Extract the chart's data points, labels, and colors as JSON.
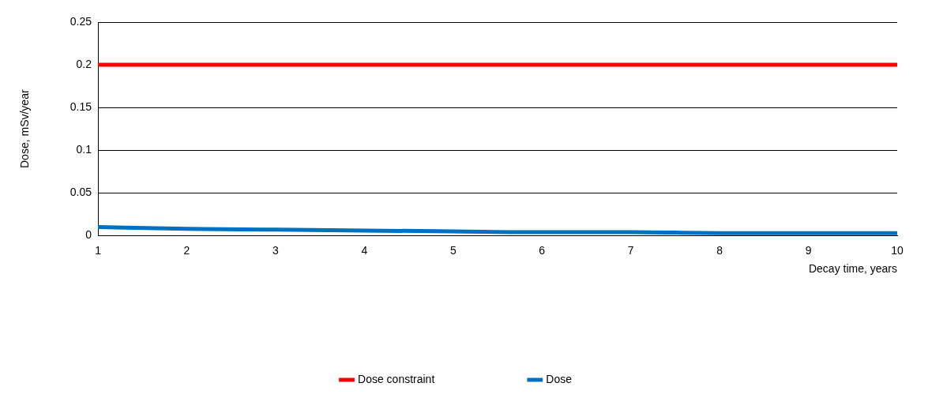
{
  "chart_data": {
    "type": "line",
    "xlabel": "Decay time, years",
    "ylabel": "Dose, mSv/year",
    "x": [
      1,
      2,
      3,
      4,
      5,
      6,
      7,
      8,
      9,
      10
    ],
    "series": [
      {
        "name": "Dose constraint",
        "color": "#ff0000",
        "values": [
          0.2,
          0.2,
          0.2,
          0.2,
          0.2,
          0.2,
          0.2,
          0.2,
          0.2,
          0.2
        ]
      },
      {
        "name": "Dose",
        "color": "#0070c0",
        "values": [
          0.01,
          0.008,
          0.007,
          0.006,
          0.005,
          0.004,
          0.004,
          0.003,
          0.003,
          0.003
        ]
      }
    ],
    "xlim": [
      1,
      10
    ],
    "xticks": [
      1,
      2,
      3,
      4,
      5,
      6,
      7,
      8,
      9,
      10
    ],
    "ylim": [
      0,
      0.25
    ],
    "yticks": [
      0,
      0.05,
      0.1,
      0.15,
      0.2,
      0.25
    ],
    "grid": "y",
    "legend": "bottom",
    "marker": "none",
    "line_style": "solid"
  }
}
